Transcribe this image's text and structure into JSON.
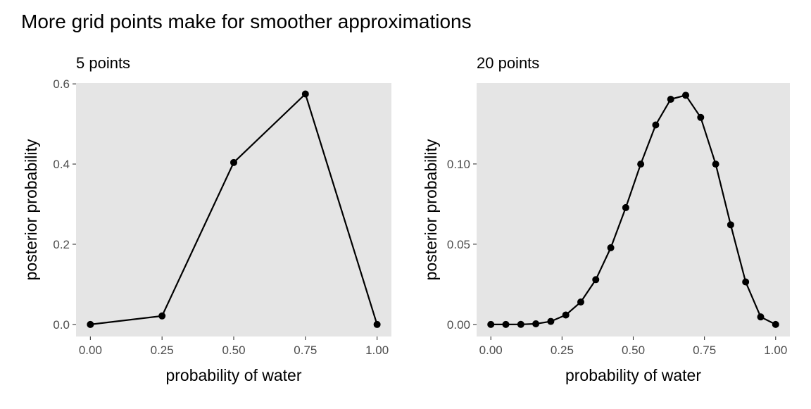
{
  "title": "More grid points make for smoother approximations",
  "chart_data": [
    {
      "type": "line",
      "subtitle": "5 points",
      "xlabel": "probability of water",
      "ylabel": "posterior probability",
      "xlim": [
        -0.05,
        1.05
      ],
      "ylim": [
        -0.03,
        0.602
      ],
      "xticks": [
        0,
        0.25,
        0.5,
        0.75,
        1
      ],
      "xtick_labels": [
        "0.00",
        "0.25",
        "0.50",
        "0.75",
        "1.00"
      ],
      "yticks": [
        0,
        0.2,
        0.4,
        0.6
      ],
      "ytick_labels": [
        "0.0",
        "0.2",
        "0.4",
        "0.6"
      ],
      "grid": false,
      "x": [
        0,
        0.25,
        0.5,
        0.75,
        1
      ],
      "y": [
        0,
        0.0213,
        0.4039,
        0.5748,
        0
      ]
    },
    {
      "type": "line",
      "subtitle": "20 points",
      "xlabel": "probability of water",
      "ylabel": "posterior probability",
      "xlim": [
        -0.05,
        1.05
      ],
      "ylim": [
        -0.0075,
        0.1504
      ],
      "xticks": [
        0,
        0.25,
        0.5,
        0.75,
        1
      ],
      "xtick_labels": [
        "0.00",
        "0.25",
        "0.50",
        "0.75",
        "1.00"
      ],
      "yticks": [
        0,
        0.05,
        0.1
      ],
      "ytick_labels": [
        "0.00",
        "0.05",
        "0.10"
      ],
      "grid": false,
      "x": [
        0,
        0.0526,
        0.1053,
        0.1579,
        0.2105,
        0.2632,
        0.3158,
        0.3684,
        0.4211,
        0.4737,
        0.5263,
        0.5789,
        0.6316,
        0.6842,
        0.7368,
        0.7895,
        0.8421,
        0.8947,
        0.9474,
        1
      ],
      "y": [
        0,
        8e-07,
        4.31e-05,
        0.0004,
        0.0019,
        0.0059,
        0.014,
        0.0279,
        0.0478,
        0.0728,
        0.0999,
        0.1243,
        0.1403,
        0.1428,
        0.129,
        0.0999,
        0.0621,
        0.0265,
        0.0047,
        0
      ]
    }
  ]
}
